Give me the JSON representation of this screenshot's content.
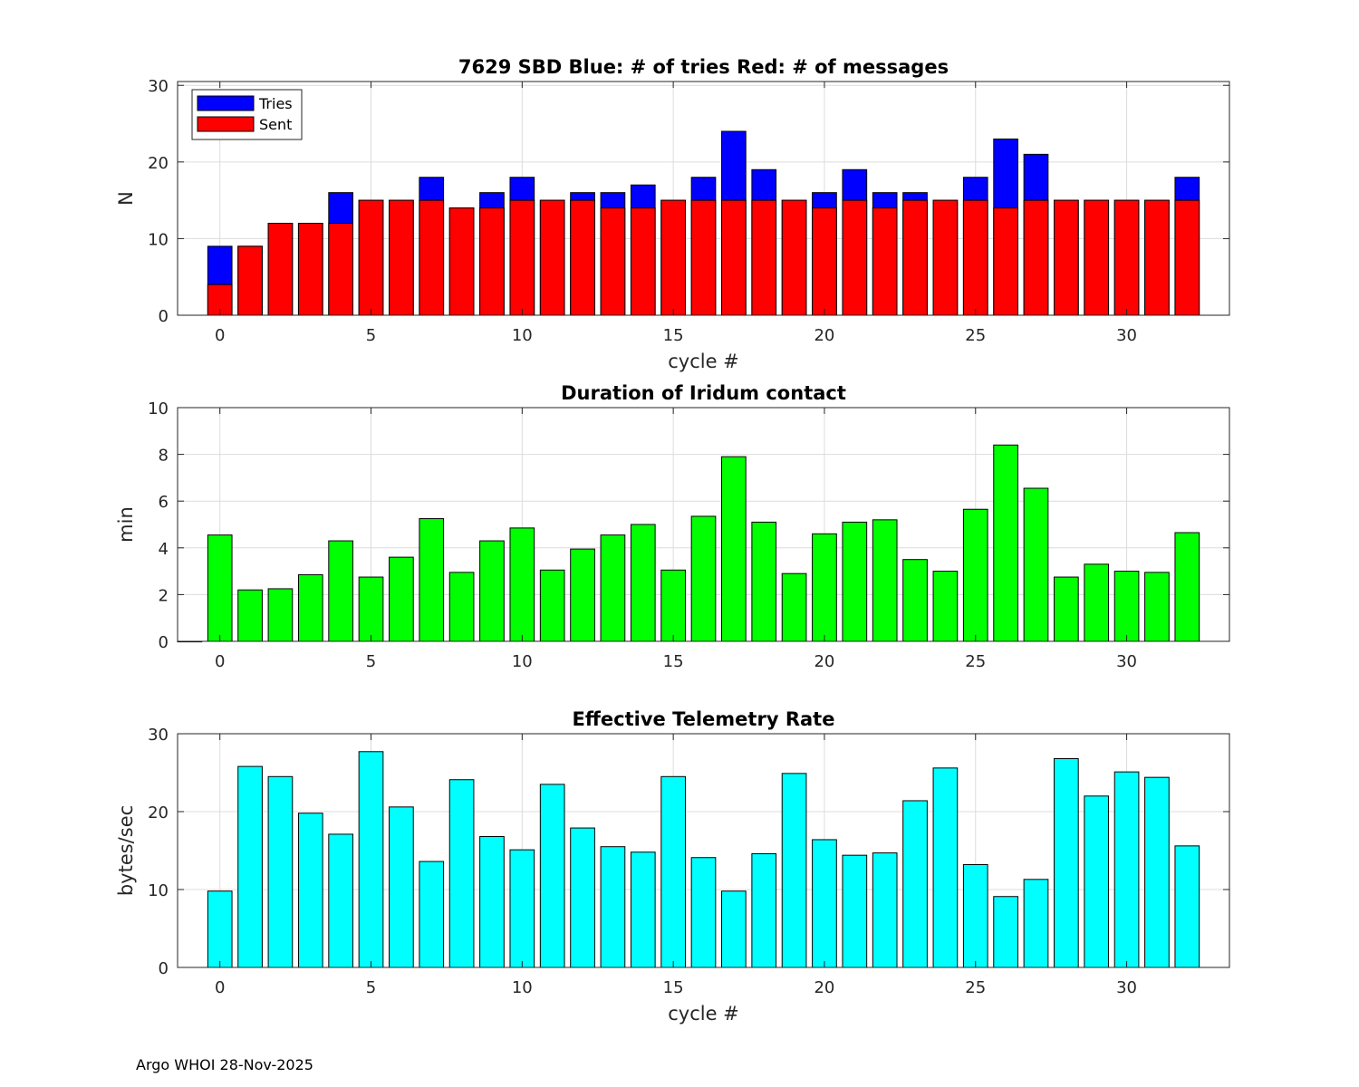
{
  "footer": "Argo WHOI 28-Nov-2025",
  "colors": {
    "tries": "#0000ff",
    "sent": "#ff0000",
    "duration": "#00ff00",
    "rate": "#00ffff",
    "grid": "#dcdcdc",
    "axis": "#262626"
  },
  "chart_data": [
    {
      "type": "bar",
      "title": "7629 SBD  Blue: # of tries   Red: # of messages",
      "xlabel": "cycle #",
      "ylabel": "N",
      "xlim": [
        -1.4,
        33.4
      ],
      "ylim": [
        0,
        30.5
      ],
      "xticks": [
        0,
        5,
        10,
        15,
        20,
        25,
        30
      ],
      "yticks": [
        0,
        10,
        20,
        30
      ],
      "grid": true,
      "legend": {
        "position": "top-left",
        "entries": [
          "Tries",
          "Sent"
        ]
      },
      "x": [
        0,
        1,
        2,
        3,
        4,
        5,
        6,
        7,
        8,
        9,
        10,
        11,
        12,
        13,
        14,
        15,
        16,
        17,
        18,
        19,
        20,
        21,
        22,
        23,
        24,
        25,
        26,
        27,
        28,
        29,
        30,
        31,
        32
      ],
      "series": [
        {
          "name": "Tries",
          "values": [
            9,
            9,
            12,
            12,
            16,
            15,
            15,
            18,
            14,
            16,
            18,
            15,
            16,
            16,
            17,
            15,
            18,
            24,
            19,
            15,
            16,
            19,
            16,
            16,
            15,
            18,
            23,
            21,
            15,
            15,
            15,
            15,
            18
          ]
        },
        {
          "name": "Sent",
          "values": [
            4,
            9,
            12,
            12,
            12,
            15,
            15,
            15,
            14,
            14,
            15,
            15,
            15,
            14,
            14,
            15,
            15,
            15,
            15,
            15,
            14,
            15,
            14,
            15,
            15,
            15,
            14,
            15,
            15,
            15,
            15,
            15,
            15
          ]
        }
      ]
    },
    {
      "type": "bar",
      "title": "Duration of Iridum contact",
      "xlabel": "",
      "ylabel": "min",
      "xlim": [
        -1.4,
        33.4
      ],
      "ylim": [
        0,
        10
      ],
      "xticks": [
        0,
        5,
        10,
        15,
        20,
        25,
        30
      ],
      "yticks": [
        0,
        2,
        4,
        6,
        8,
        10
      ],
      "grid": true,
      "x": [
        -1,
        0,
        1,
        2,
        3,
        4,
        5,
        6,
        7,
        8,
        9,
        10,
        11,
        12,
        13,
        14,
        15,
        16,
        17,
        18,
        19,
        20,
        21,
        22,
        23,
        24,
        25,
        26,
        27,
        28,
        29,
        30,
        31,
        32
      ],
      "series": [
        {
          "name": "Duration",
          "values": [
            0,
            4.55,
            2.2,
            2.25,
            2.85,
            4.3,
            2.75,
            3.6,
            5.25,
            2.95,
            4.3,
            4.85,
            3.05,
            3.95,
            4.55,
            5.0,
            3.05,
            5.35,
            7.9,
            5.1,
            2.9,
            4.6,
            5.1,
            5.2,
            3.5,
            3.0,
            5.65,
            8.4,
            6.55,
            2.75,
            3.3,
            3.0,
            2.95,
            4.65
          ]
        }
      ]
    },
    {
      "type": "bar",
      "title": "Effective Telemetry Rate",
      "xlabel": "cycle #",
      "ylabel": "bytes/sec",
      "xlim": [
        -1.4,
        33.4
      ],
      "ylim": [
        0,
        30
      ],
      "xticks": [
        0,
        5,
        10,
        15,
        20,
        25,
        30
      ],
      "yticks": [
        0,
        10,
        20,
        30
      ],
      "grid": true,
      "x": [
        0,
        1,
        2,
        3,
        4,
        5,
        6,
        7,
        8,
        9,
        10,
        11,
        12,
        13,
        14,
        15,
        16,
        17,
        18,
        19,
        20,
        21,
        22,
        23,
        24,
        25,
        26,
        27,
        28,
        29,
        30,
        31,
        32
      ],
      "series": [
        {
          "name": "Rate",
          "values": [
            9.8,
            25.8,
            24.5,
            19.8,
            17.1,
            27.7,
            20.6,
            13.6,
            24.1,
            16.8,
            15.1,
            23.5,
            17.9,
            15.5,
            14.8,
            24.5,
            14.1,
            9.8,
            14.6,
            24.9,
            16.4,
            14.4,
            14.7,
            21.4,
            25.6,
            13.2,
            9.1,
            11.3,
            26.8,
            22.0,
            25.1,
            24.4,
            15.6
          ]
        }
      ]
    }
  ]
}
